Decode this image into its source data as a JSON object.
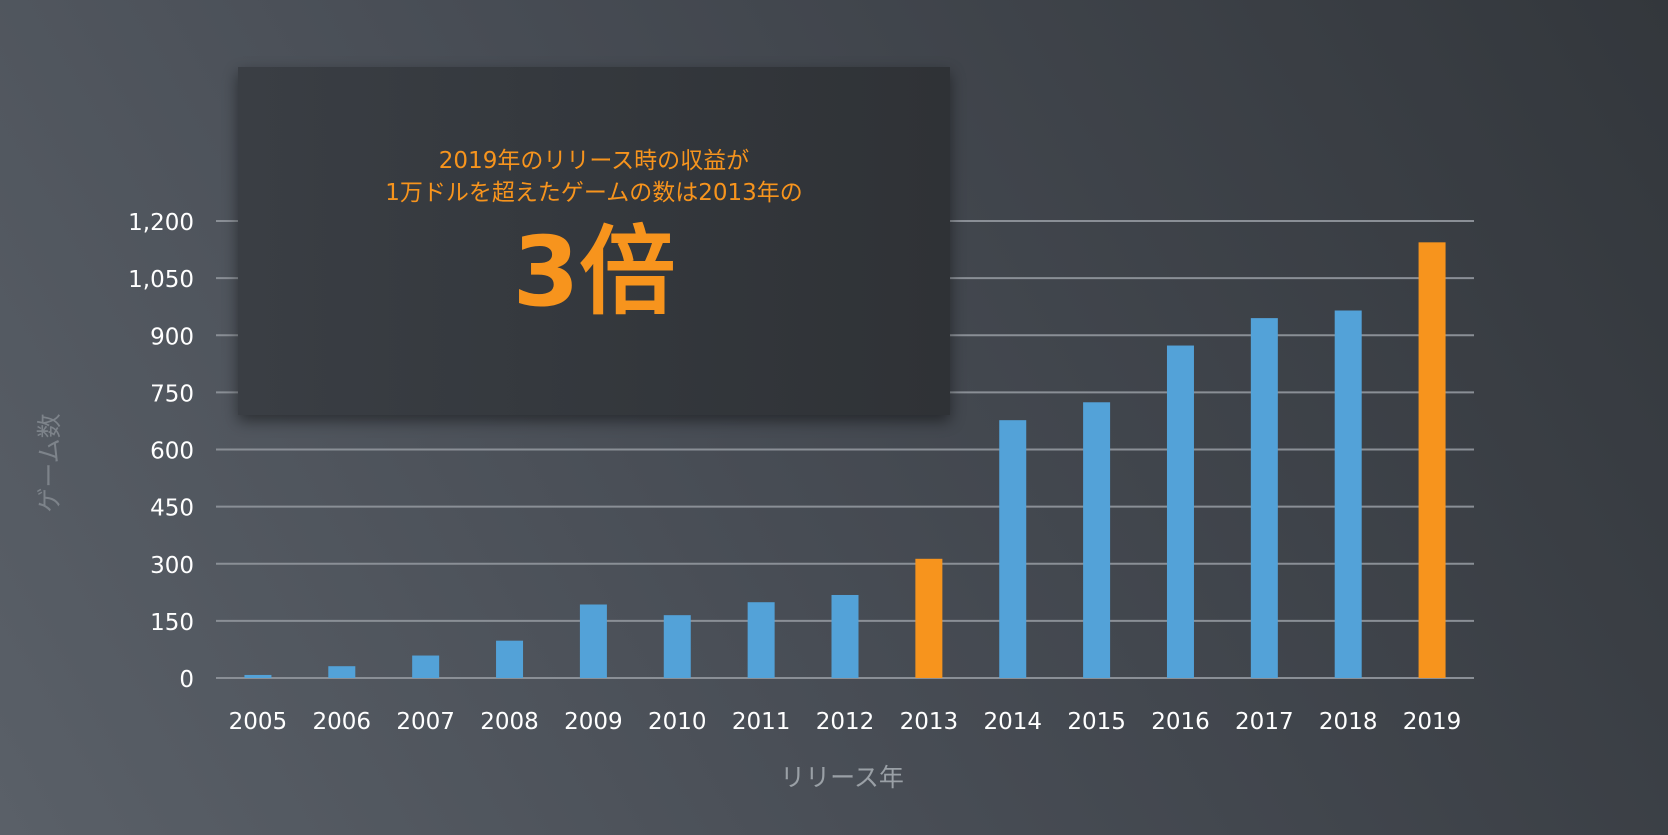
{
  "chart_data": {
    "type": "bar",
    "title": "",
    "xlabel": "リリース年",
    "ylabel": "ゲーム数",
    "ylim": [
      0,
      1200
    ],
    "yticks": [
      "0",
      "150",
      "300",
      "450",
      "600",
      "750",
      "900",
      "1,050",
      "1,200"
    ],
    "ytick_values": [
      0,
      150,
      300,
      450,
      600,
      750,
      900,
      1050,
      1200
    ],
    "grid": true,
    "categories": [
      "2005",
      "2006",
      "2007",
      "2008",
      "2009",
      "2010",
      "2011",
      "2012",
      "2013",
      "2014",
      "2015",
      "2016",
      "2017",
      "2018",
      "2019"
    ],
    "values": [
      8,
      31,
      59,
      98,
      193,
      165,
      199,
      218,
      313,
      677,
      724,
      873,
      945,
      965,
      1144
    ],
    "highlight": [
      "2013",
      "2019"
    ],
    "colors": {
      "default": "#53a2d8",
      "highlight": "#f7941d",
      "grid": "#8a8f96",
      "text": "#ffffff",
      "axis_title": "#9aa0a6"
    }
  },
  "callout": {
    "line1": "2019年のリリース時の収益が",
    "line2": "1万ドルを超えたゲームの数は2013年の",
    "big": "3倍"
  }
}
